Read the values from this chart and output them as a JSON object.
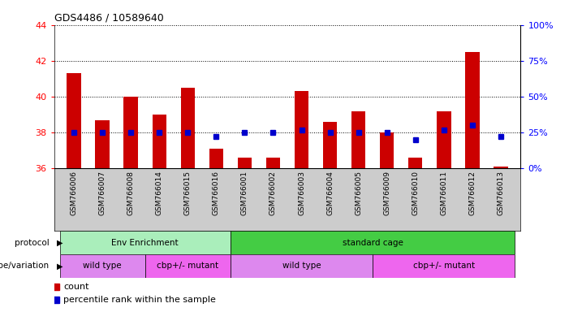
{
  "title": "GDS4486 / 10589640",
  "samples": [
    "GSM766006",
    "GSM766007",
    "GSM766008",
    "GSM766014",
    "GSM766015",
    "GSM766016",
    "GSM766001",
    "GSM766002",
    "GSM766003",
    "GSM766004",
    "GSM766005",
    "GSM766009",
    "GSM766010",
    "GSM766011",
    "GSM766012",
    "GSM766013"
  ],
  "counts": [
    41.3,
    38.7,
    40.0,
    39.0,
    40.5,
    37.1,
    36.6,
    36.6,
    40.3,
    38.6,
    39.2,
    38.0,
    36.6,
    39.2,
    42.5,
    36.1
  ],
  "percentiles": [
    25,
    25,
    25,
    25,
    25,
    22,
    25,
    25,
    27,
    25,
    25,
    25,
    20,
    27,
    30,
    22
  ],
  "ylim_left": [
    36,
    44
  ],
  "ylim_right": [
    0,
    100
  ],
  "yticks_left": [
    36,
    38,
    40,
    42,
    44
  ],
  "yticks_right": [
    0,
    25,
    50,
    75,
    100
  ],
  "bar_color": "#cc0000",
  "dot_color": "#0000cc",
  "protocol_groups": [
    {
      "label": "Env Enrichment",
      "start": 0,
      "end": 6,
      "color": "#aaeebb"
    },
    {
      "label": "standard cage",
      "start": 6,
      "end": 16,
      "color": "#44cc44"
    }
  ],
  "genotype_groups": [
    {
      "label": "wild type",
      "start": 0,
      "end": 3,
      "color": "#dd88ee"
    },
    {
      "label": "cbp+/- mutant",
      "start": 3,
      "end": 6,
      "color": "#ee66ee"
    },
    {
      "label": "wild type",
      "start": 6,
      "end": 11,
      "color": "#dd88ee"
    },
    {
      "label": "cbp+/- mutant",
      "start": 11,
      "end": 16,
      "color": "#ee66ee"
    }
  ],
  "protocol_label": "protocol",
  "genotype_label": "genotype/variation",
  "legend_count_label": "count",
  "legend_percentile_label": "percentile rank within the sample",
  "sample_bg": "#cccccc",
  "fig_width": 7.01,
  "fig_height": 3.84,
  "dpi": 100
}
